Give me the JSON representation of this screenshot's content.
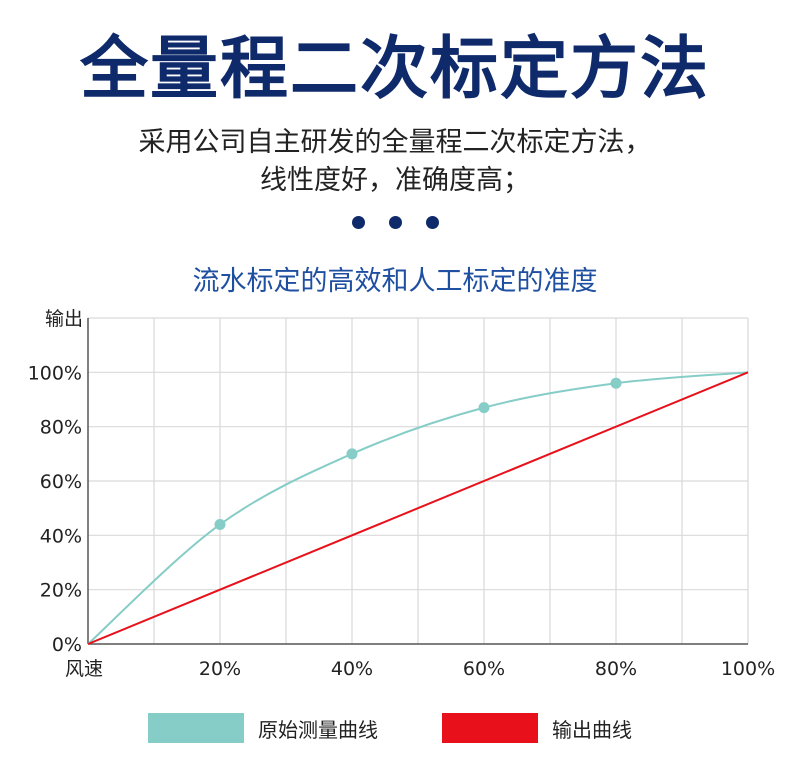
{
  "header": {
    "title": "全量程二次标定方法",
    "subtitle_line1": "采用公司自主研发的全量程二次标定方法，",
    "subtitle_line2": "线性度好，准确度高；"
  },
  "chart_data": {
    "type": "line",
    "title": "流水标定的高效和人工标定的准度",
    "xlabel": "风速",
    "ylabel": "输出",
    "x_ticks": [
      "20%",
      "40%",
      "60%",
      "80%",
      "100%"
    ],
    "y_ticks": [
      "0%",
      "20%",
      "40%",
      "60%",
      "80%",
      "100%"
    ],
    "xlim": [
      0,
      100
    ],
    "ylim": [
      0,
      120
    ],
    "grid": true,
    "legend_position": "bottom",
    "series": [
      {
        "name": "原始测量曲线",
        "color": "#86cdc7",
        "smooth": true,
        "x": [
          0,
          20,
          40,
          60,
          80,
          100
        ],
        "y": [
          0,
          44,
          70,
          87,
          96,
          100
        ],
        "markers_x": [
          20,
          40,
          60,
          80
        ],
        "markers_y": [
          44,
          70,
          87,
          96
        ]
      },
      {
        "name": "输出曲线",
        "color": "#e8101b",
        "smooth": false,
        "x": [
          0,
          100
        ],
        "y": [
          0,
          100
        ]
      }
    ]
  }
}
